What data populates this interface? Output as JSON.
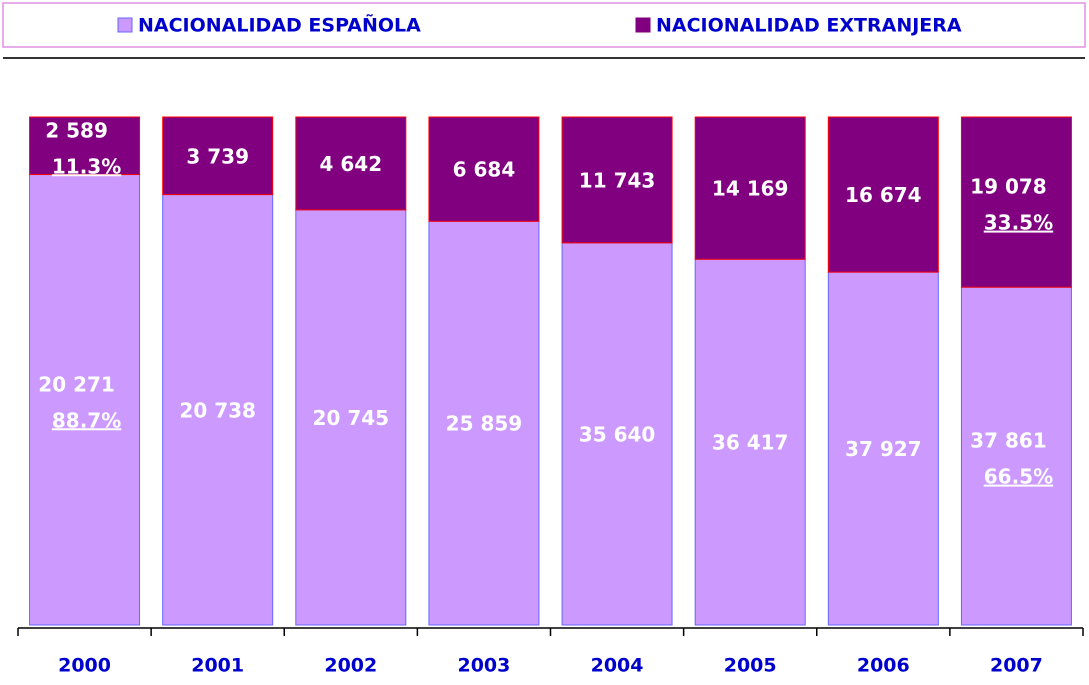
{
  "chart_data": {
    "type": "stacked_bar_100",
    "categories": [
      "2000",
      "2001",
      "2002",
      "2003",
      "2004",
      "2005",
      "2006",
      "2007"
    ],
    "series": [
      {
        "name": "NACIONALIDAD ESPAÑOLA",
        "color": "#cc99ff",
        "border": "#6666ff",
        "values": [
          20271,
          20738,
          20745,
          25859,
          35640,
          36417,
          37927,
          37861
        ],
        "value_labels": [
          "20 271",
          "20 738",
          "20 745",
          "25 859",
          "35 640",
          "36 417",
          "37 927",
          "37 861"
        ]
      },
      {
        "name": "NACIONALIDAD EXTRANJERA",
        "color": "#800080",
        "border": "#ff0000",
        "values": [
          2589,
          3739,
          4642,
          6684,
          11743,
          14169,
          16674,
          19078
        ],
        "value_labels": [
          "2 589",
          "3 739",
          "4 642",
          "6 684",
          "11 743",
          "14 169",
          "16 674",
          "19 078"
        ]
      }
    ],
    "annotations": [
      {
        "category": "2000",
        "series": "NACIONALIDAD EXTRANJERA",
        "label": "11.3%"
      },
      {
        "category": "2000",
        "series": "NACIONALIDAD ESPAÑOLA",
        "label": "88.7%"
      },
      {
        "category": "2007",
        "series": "NACIONALIDAD EXTRANJERA",
        "label": "33.5%"
      },
      {
        "category": "2007",
        "series": "NACIONALIDAD ESPAÑOLA",
        "label": "66.5%"
      }
    ],
    "legend": "top"
  }
}
